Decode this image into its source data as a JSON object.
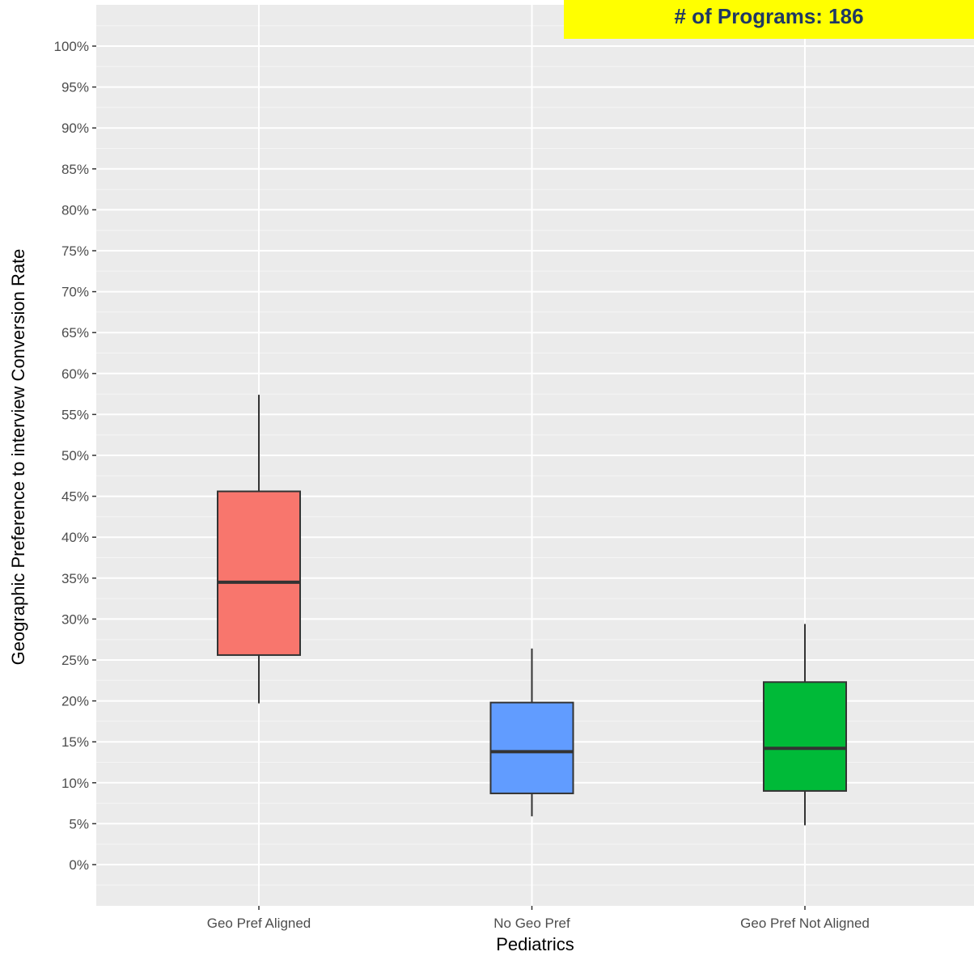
{
  "badge": {
    "text": "# of Programs: 186",
    "background": "#ffff00",
    "color": "#1f3864"
  },
  "chart_data": {
    "type": "boxplot",
    "title": "",
    "xlabel": "Pediatrics",
    "ylabel": "Geographic Preference to interview Conversion Rate",
    "ylim": [
      -5,
      105
    ],
    "yticks": [
      0,
      5,
      10,
      15,
      20,
      25,
      30,
      35,
      40,
      45,
      50,
      55,
      60,
      65,
      70,
      75,
      80,
      85,
      90,
      95,
      100
    ],
    "ytick_labels": [
      "0%",
      "5%",
      "10%",
      "15%",
      "20%",
      "25%",
      "30%",
      "35%",
      "40%",
      "45%",
      "50%",
      "55%",
      "60%",
      "65%",
      "70%",
      "75%",
      "80%",
      "85%",
      "90%",
      "95%",
      "100%"
    ],
    "grid": true,
    "legend": "none",
    "categories": [
      "Geo Pref Aligned",
      "No Geo Pref",
      "Geo Pref Not Aligned"
    ],
    "boxes": [
      {
        "category": "Geo Pref Aligned",
        "whisker_low": 19.7,
        "q1": 25.6,
        "median": 34.5,
        "q3": 45.6,
        "whisker_high": 57.4,
        "color": "#f8766d"
      },
      {
        "category": "No Geo Pref",
        "whisker_low": 5.9,
        "q1": 8.7,
        "median": 13.8,
        "q3": 19.8,
        "whisker_high": 26.4,
        "color": "#619cff"
      },
      {
        "category": "Geo Pref Not Aligned",
        "whisker_low": 4.8,
        "q1": 9.0,
        "median": 14.2,
        "q3": 22.3,
        "whisker_high": 29.4,
        "color": "#00ba38"
      }
    ]
  }
}
